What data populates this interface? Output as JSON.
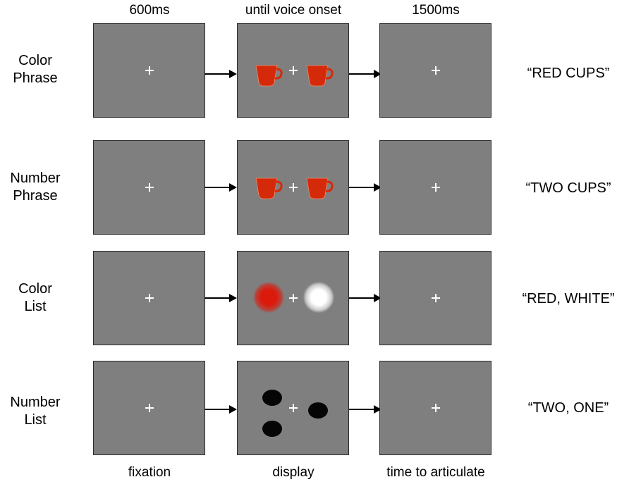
{
  "columns": {
    "top": [
      "600ms",
      "until voice onset",
      "1500ms"
    ],
    "bottom": [
      "fixation",
      "display",
      "time to articulate"
    ]
  },
  "rows": [
    {
      "label_line1": "Color",
      "label_line2": "Phrase",
      "display": "red-cups",
      "response": "“RED CUPS”"
    },
    {
      "label_line1": "Number",
      "label_line2": "Phrase",
      "display": "red-cups",
      "response": "“TWO CUPS”"
    },
    {
      "label_line1": "Color",
      "label_line2": "List",
      "display": "red-white-blobs",
      "response": "“RED, WHITE”"
    },
    {
      "label_line1": "Number",
      "label_line2": "List",
      "display": "black-dots",
      "response": "“TWO, ONE”"
    }
  ],
  "colors": {
    "screen": "#7f7f7f",
    "cup": "#d42a0a",
    "red_blob": "#dc1a0c",
    "white_blob": "#ffffff",
    "dot": "#050505"
  }
}
